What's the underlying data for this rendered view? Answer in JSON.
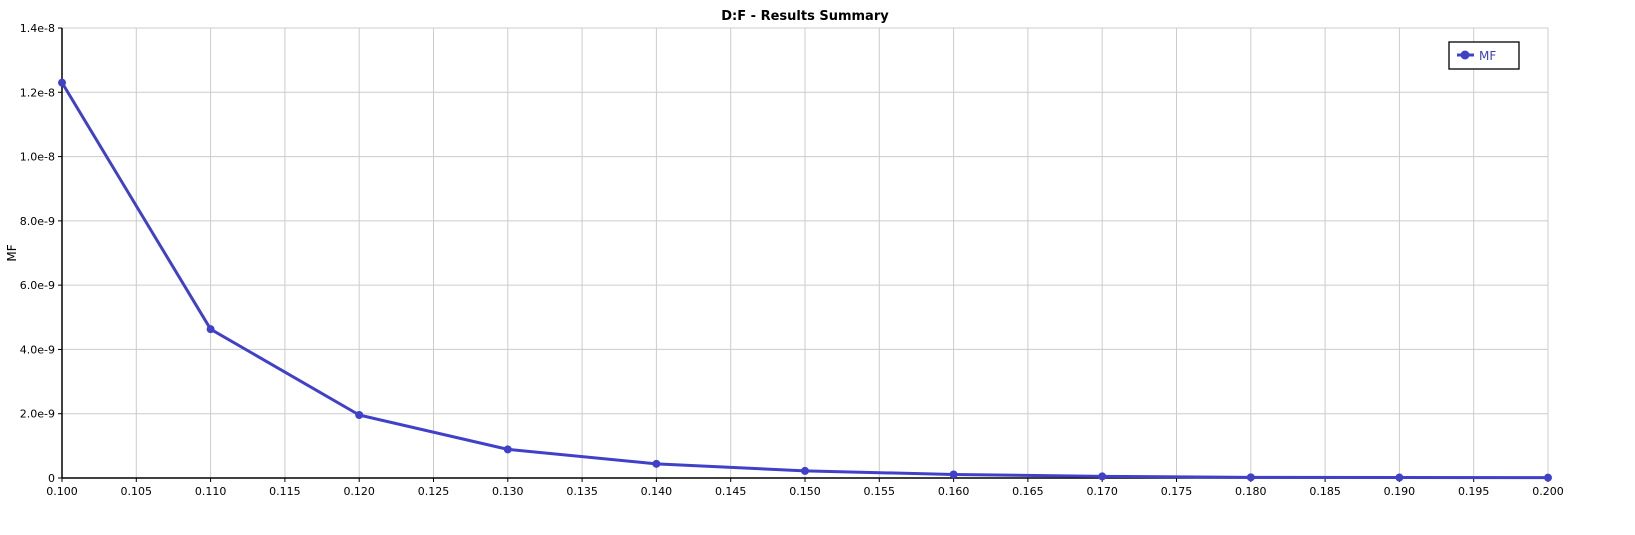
{
  "chart_data": {
    "type": "line",
    "title": "D:F - Results Summary",
    "xlabel": "",
    "ylabel": "MF",
    "xlim": [
      0.1,
      0.2
    ],
    "ylim": [
      0,
      1.4e-08
    ],
    "xticks": [
      "0.100",
      "0.105",
      "0.110",
      "0.115",
      "0.120",
      "0.125",
      "0.130",
      "0.135",
      "0.140",
      "0.145",
      "0.150",
      "0.155",
      "0.160",
      "0.165",
      "0.170",
      "0.175",
      "0.180",
      "0.185",
      "0.190",
      "0.195",
      "0.200"
    ],
    "yticks": [
      "0",
      "2.0e-9",
      "4.0e-9",
      "6.0e-9",
      "8.0e-9",
      "1.0e-8",
      "1.2e-8",
      "1.4e-8"
    ],
    "grid": true,
    "legend_position": "top-right",
    "series": [
      {
        "name": "MF",
        "color": "#4040c8",
        "x": [
          0.1,
          0.11,
          0.12,
          0.13,
          0.14,
          0.15,
          0.16,
          0.17,
          0.18,
          0.19,
          0.2
        ],
        "y": [
          1.23e-08,
          4.63e-09,
          1.96e-09,
          8.9e-10,
          4.4e-10,
          2.2e-10,
          1.1e-10,
          5e-11,
          2e-11,
          1.5e-11,
          1e-11
        ]
      }
    ]
  }
}
